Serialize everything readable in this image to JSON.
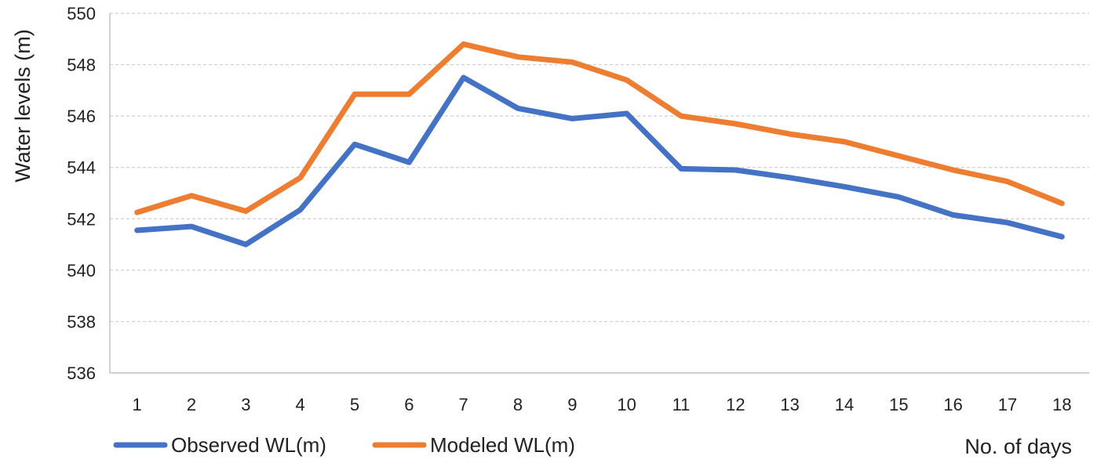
{
  "chart_data": {
    "type": "line",
    "title": "",
    "xlabel": "No. of days",
    "ylabel": "Water levels (m)",
    "x": [
      1,
      2,
      3,
      4,
      5,
      6,
      7,
      8,
      9,
      10,
      11,
      12,
      13,
      14,
      15,
      16,
      17,
      18
    ],
    "x_tick_labels": [
      "1",
      "2",
      "3",
      "4",
      "5",
      "6",
      "7",
      "8",
      "9",
      "10",
      "11",
      "12",
      "13",
      "14",
      "15",
      "16",
      "17",
      "18"
    ],
    "ylim": [
      536,
      550
    ],
    "y_ticks": [
      536,
      538,
      540,
      542,
      544,
      546,
      548,
      550
    ],
    "y_tick_labels": [
      "536",
      "538",
      "540",
      "542",
      "544",
      "546",
      "548",
      "550"
    ],
    "grid": true,
    "legend_position": "bottom-left",
    "series": [
      {
        "name": "Observed WL(m)",
        "color": "#4472C4",
        "values": [
          541.55,
          541.7,
          541.0,
          542.35,
          544.9,
          544.2,
          547.5,
          546.3,
          545.9,
          546.1,
          543.95,
          543.9,
          543.6,
          543.25,
          542.85,
          542.15,
          541.85,
          541.3
        ]
      },
      {
        "name": "Modeled WL(m)",
        "color": "#ED7D31",
        "values": [
          542.25,
          542.9,
          542.3,
          543.6,
          546.85,
          546.85,
          548.8,
          548.3,
          548.1,
          547.4,
          546.0,
          545.7,
          545.3,
          545.0,
          544.45,
          543.9,
          543.45,
          542.6
        ]
      }
    ]
  }
}
